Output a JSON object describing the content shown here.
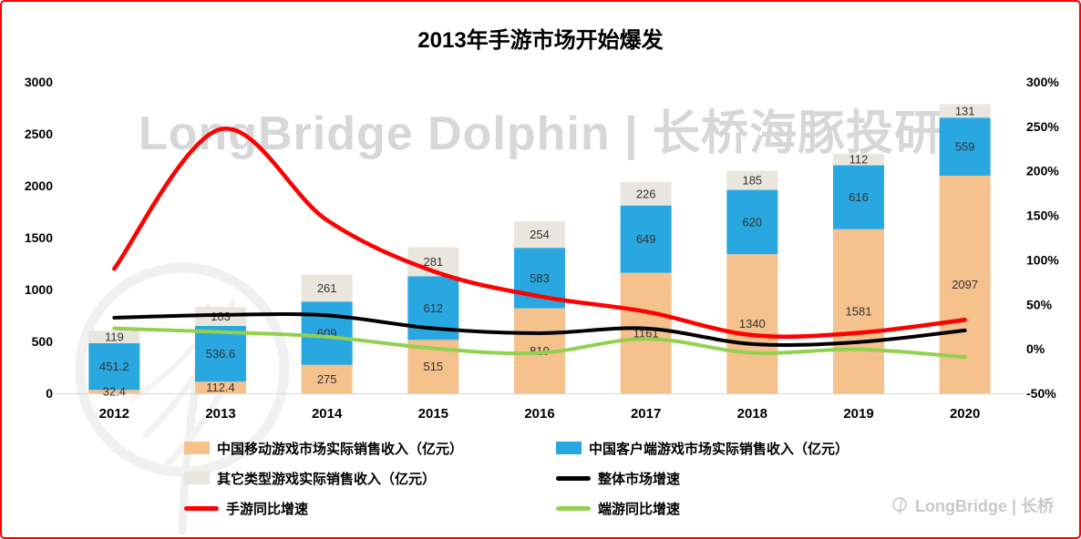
{
  "title": "2013年手游市场开始爆发",
  "watermark": {
    "center": "LongBridge Dolphin | 长桥海豚投研",
    "corner": "LongBridge | 长桥"
  },
  "chart_data": {
    "type": "bar",
    "subtype": "stacked-bars-with-growth-lines",
    "title": "2013年手游市场开始爆发",
    "categories": [
      "2012",
      "2013",
      "2014",
      "2015",
      "2016",
      "2017",
      "2018",
      "2019",
      "2020"
    ],
    "bar_series": [
      {
        "name": "中国移动游戏市场实际销售收入（亿元）",
        "color": "#F5C18C",
        "values": [
          32.4,
          112.4,
          275,
          515,
          819,
          1161,
          1340,
          1581,
          2097
        ]
      },
      {
        "name": "中国客户端游戏市场实际销售收入（亿元）",
        "color": "#29A7E0",
        "values": [
          451.2,
          536.6,
          609,
          612,
          583,
          649,
          620,
          616,
          559
        ]
      },
      {
        "name": "其它类型游戏实际销售收入（亿元）",
        "color": "#E9E6DE",
        "values": [
          119,
          183,
          261,
          281,
          254,
          226,
          185,
          112,
          131
        ]
      }
    ],
    "line_series": [
      {
        "name": "整体市场增速",
        "color": "#000000",
        "width": 4,
        "z": 2,
        "values": [
          35,
          38.1,
          37.6,
          23,
          17.6,
          22.9,
          5.4,
          7.6,
          20.7
        ]
      },
      {
        "name": "手游同比增速",
        "color": "#FF0000",
        "width": 4.6,
        "z": 3,
        "values": [
          90,
          246.9,
          144.7,
          87.3,
          59,
          41.8,
          15.4,
          18,
          32.6
        ]
      },
      {
        "name": "端游同比增速",
        "color": "#92D050",
        "width": 4,
        "z": 1,
        "values": [
          23,
          18.9,
          13.5,
          0.5,
          -4.7,
          11.3,
          -4.5,
          -0.6,
          -9.3
        ]
      }
    ],
    "left_axis": {
      "min": 0,
      "max": 3000,
      "step": 500,
      "ticks": [
        "3000",
        "2500",
        "2000",
        "1500",
        "1000",
        "500",
        "0"
      ]
    },
    "right_axis": {
      "min": -50,
      "max": 300,
      "step": 50,
      "ticks": [
        "300%",
        "250%",
        "200%",
        "150%",
        "100%",
        "50%",
        "0%",
        "-50%"
      ]
    },
    "grid": false,
    "legend_position": "bottom"
  },
  "legend": {
    "items": [
      {
        "type": "box",
        "color": "#F5C18C",
        "label": "中国移动游戏市场实际销售收入（亿元）"
      },
      {
        "type": "box",
        "color": "#29A7E0",
        "label": "中国客户端游戏市场实际销售收入（亿元）"
      },
      {
        "type": "box",
        "color": "#E9E6DE",
        "label": "其它类型游戏实际销售收入（亿元）"
      },
      {
        "type": "line",
        "color": "#000000",
        "label": "整体市场增速"
      },
      {
        "type": "line",
        "color": "#FF0000",
        "label": "手游同比增速"
      },
      {
        "type": "line",
        "color": "#92D050",
        "label": "端游同比增速"
      }
    ]
  }
}
